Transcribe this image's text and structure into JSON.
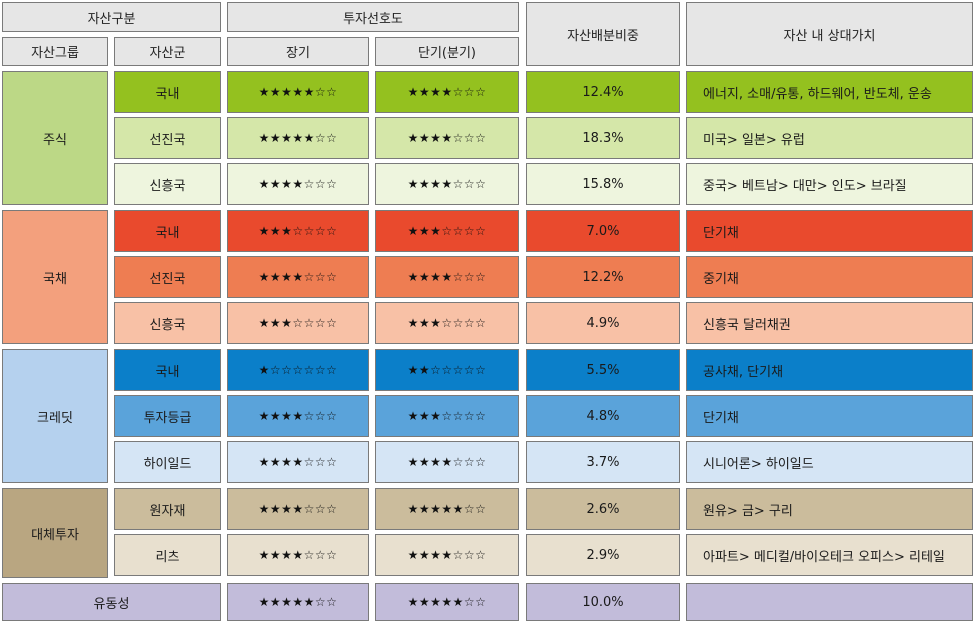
{
  "header": {
    "asset_class": "자산구분",
    "preference": "투자선호도",
    "allocation": "자산배분비중",
    "relative_value": "자산 내 상대가치",
    "asset_group": "자산그룹",
    "asset_type": "자산군",
    "long_term": "장기",
    "short_term": "단기(분기)"
  },
  "groups": [
    {
      "name": "주식",
      "color": "#bcd886"
    },
    {
      "name": "국채",
      "color": "#f3a07d"
    },
    {
      "name": "크레딧",
      "color": "#b5d1ee"
    },
    {
      "name": "대체투자",
      "color": "#b9a681"
    }
  ],
  "rows": [
    {
      "type": "국내",
      "long": "★★★★★☆☆",
      "short": "★★★★☆☆☆",
      "weight": "12.4%",
      "value": "에너지, 소매/유통, 하드웨어, 반도체, 운송",
      "bg": "#94c11f"
    },
    {
      "type": "선진국",
      "long": "★★★★★☆☆",
      "short": "★★★★☆☆☆",
      "weight": "18.3%",
      "value": "미국> 일본> 유럽",
      "bg": "#d5e7a9"
    },
    {
      "type": "신흥국",
      "long": "★★★★☆☆☆",
      "short": "★★★★☆☆☆",
      "weight": "15.8%",
      "value": "중국> 베트남> 대만> 인도> 브라질",
      "bg": "#eef5de"
    },
    {
      "type": "국내",
      "long": "★★★☆☆☆☆",
      "short": "★★★☆☆☆☆",
      "weight": "7.0%",
      "value": "단기채",
      "bg": "#e94a2d"
    },
    {
      "type": "선진국",
      "long": "★★★★☆☆☆",
      "short": "★★★★☆☆☆",
      "weight": "12.2%",
      "value": "중기채",
      "bg": "#ee7d52"
    },
    {
      "type": "신흥국",
      "long": "★★★☆☆☆☆",
      "short": "★★★☆☆☆☆",
      "weight": "4.9%",
      "value": "신흥국 달러채권",
      "bg": "#f8c1a6"
    },
    {
      "type": "국내",
      "long": "★☆☆☆☆☆☆",
      "short": "★★☆☆☆☆☆",
      "weight": "5.5%",
      "value": "공사채, 단기채",
      "bg": "#0b7fc9"
    },
    {
      "type": "투자등급",
      "long": "★★★★☆☆☆",
      "short": "★★★☆☆☆☆",
      "weight": "4.8%",
      "value": "단기채",
      "bg": "#5aa3da"
    },
    {
      "type": "하이일드",
      "long": "★★★★☆☆☆",
      "short": "★★★★☆☆☆",
      "weight": "3.7%",
      "value": "시니어론> 하이일드",
      "bg": "#d5e5f5"
    },
    {
      "type": "원자재",
      "long": "★★★★☆☆☆",
      "short": "★★★★★☆☆",
      "weight": "2.6%",
      "value": "원유> 금> 구리",
      "bg": "#cbbc9c"
    },
    {
      "type": "리츠",
      "long": "★★★★☆☆☆",
      "short": "★★★★☆☆☆",
      "weight": "2.9%",
      "value": "아파트> 메디컬/바이오테크  오피스> 리테일",
      "bg": "#e8e0cf"
    }
  ],
  "liquidity": {
    "name": "유동성",
    "long": "★★★★★☆☆",
    "short": "★★★★★☆☆",
    "weight": "10.0%",
    "value": "",
    "bg": "#c2bcda"
  }
}
